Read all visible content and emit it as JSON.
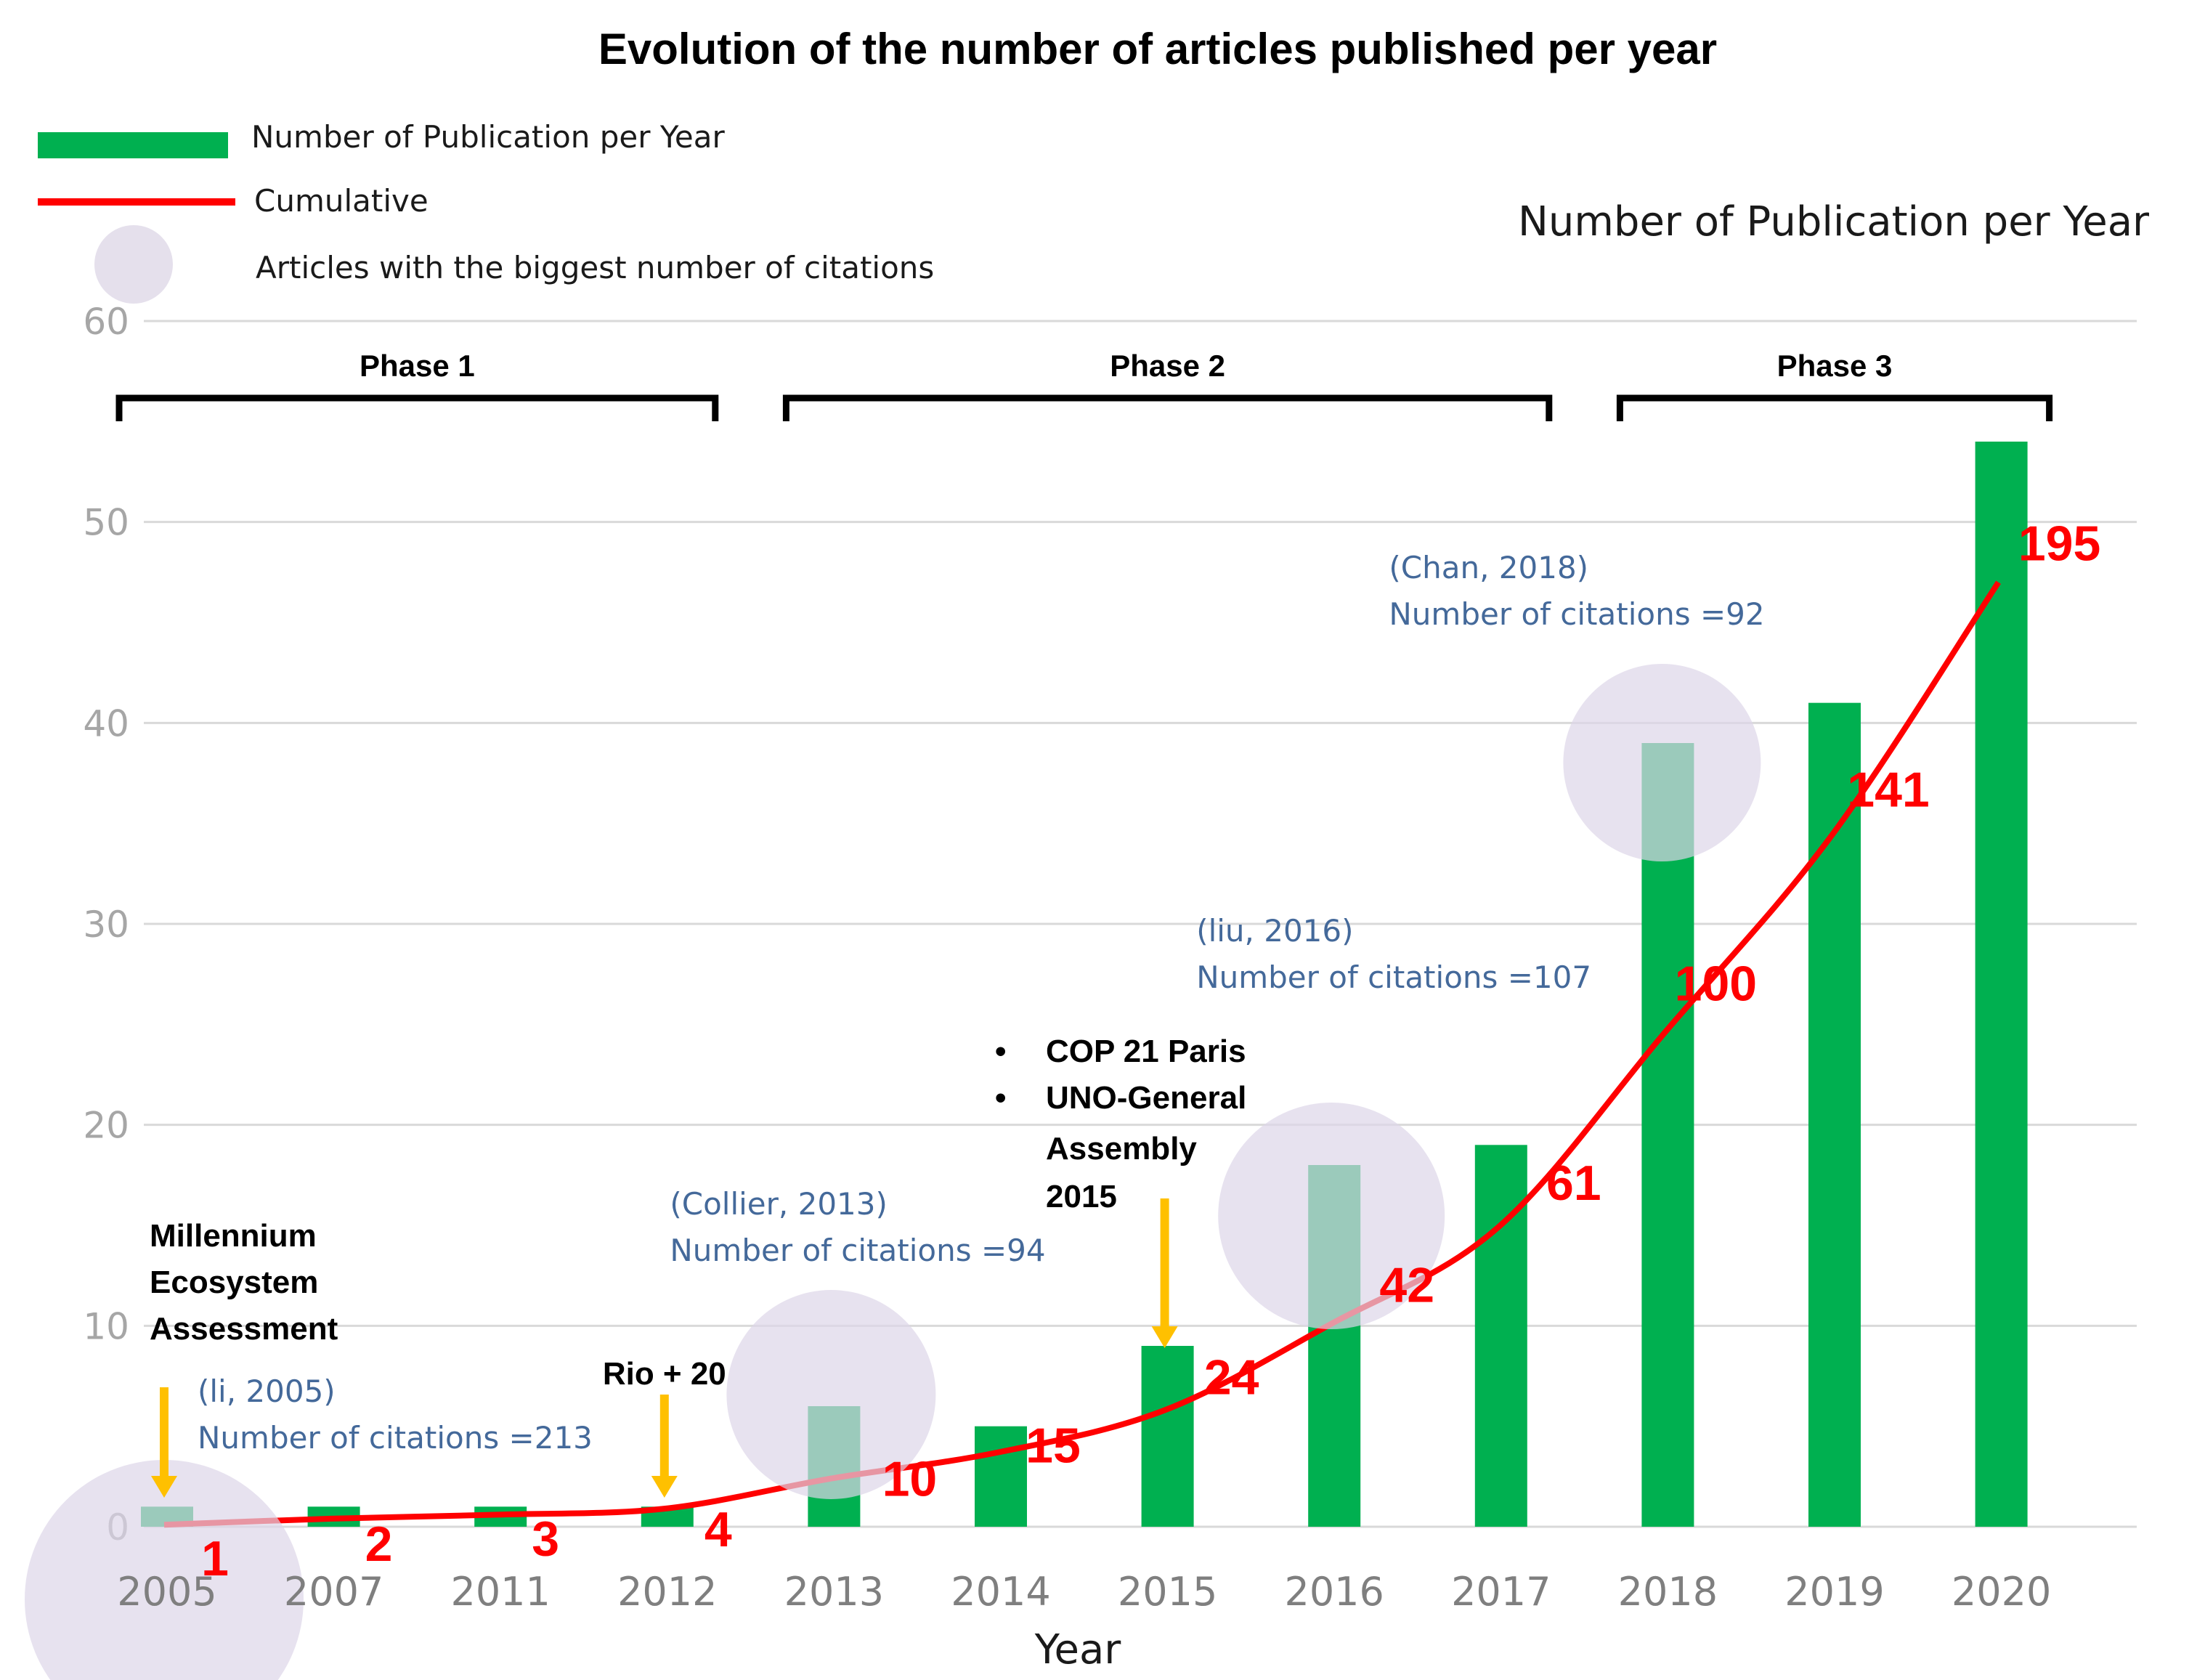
{
  "chart_data": {
    "type": "bar",
    "title": "Evolution of the number of articles published per year",
    "xlabel": "Year",
    "ylabel": "Number of Publication per Year",
    "ylim": [
      0,
      60
    ],
    "yticks": [
      0,
      10,
      20,
      30,
      40,
      50,
      60
    ],
    "grid": true,
    "categories": [
      "2005",
      "2007",
      "2011",
      "2012",
      "2013",
      "2014",
      "2015",
      "2016",
      "2017",
      "2018",
      "2019",
      "2020"
    ],
    "series": [
      {
        "name": "Number of Publication per Year",
        "type": "bar",
        "color": "#00b050",
        "values": [
          1,
          1,
          1,
          1,
          6,
          5,
          9,
          18,
          19,
          39,
          41,
          54
        ]
      },
      {
        "name": "Cumulative",
        "type": "line",
        "color": "#ff0000",
        "values": [
          0.1,
          0.4,
          0.6,
          0.9,
          2.4,
          3.7,
          5.8,
          10.1,
          14.9,
          24.6,
          34.4,
          47
        ]
      }
    ],
    "cumulative_labels": [
      "1",
      "2",
      "3",
      "4",
      "10",
      "15",
      "24",
      "42",
      "61",
      "100",
      "141",
      "195"
    ],
    "legend": [
      {
        "label": "Number of Publication per Year",
        "marker": "bar",
        "color": "#00b050"
      },
      {
        "label": "Cumulative",
        "marker": "line",
        "color": "#ff0000"
      },
      {
        "label": "Articles with the biggest number of citations",
        "marker": "circle",
        "color": "#e5e0ec"
      }
    ],
    "legend_position": "top-left",
    "phases": [
      {
        "label": "Phase 1",
        "from": "2005",
        "to": "2012"
      },
      {
        "label": "Phase 2",
        "from": "2013",
        "to": "2017"
      },
      {
        "label": "Phase 3",
        "from": "2018",
        "to": "2020"
      }
    ],
    "events": [
      {
        "year": "2005",
        "lines": [
          "Millennium",
          "Ecosystem",
          "Assessment"
        ]
      },
      {
        "year": "2012",
        "lines": [
          "Rio + 20"
        ]
      },
      {
        "year": "2015",
        "lines": [
          "COP 21 Paris",
          "UNO-General",
          "Assembly",
          "2015"
        ]
      }
    ],
    "citations": [
      {
        "year": "2005",
        "ref": "(li, 2005)",
        "count": "Number of citations =213"
      },
      {
        "year": "2013",
        "ref": "(Collier, 2013)",
        "count": "Number of citations =94"
      },
      {
        "year": "2016",
        "ref": "(liu, 2016)",
        "count": "Number of citations =107"
      },
      {
        "year": "2018",
        "ref": "(Chan, 2018)",
        "count": "Number of citations =92"
      }
    ],
    "colors": {
      "arrow": "#ffc000",
      "circle": "#ddd6e8",
      "grid": "#d9d9d9"
    }
  }
}
